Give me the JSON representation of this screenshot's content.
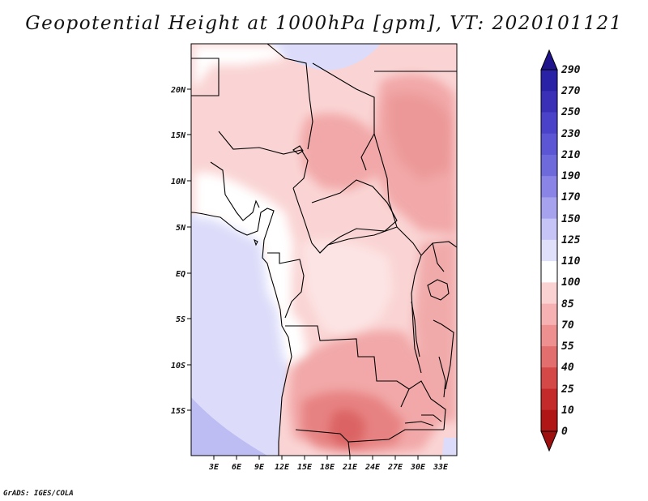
{
  "map": {
    "title": "Geopotential Height at 1000hPa [gpm], VT: 2020101121",
    "variable": "Geopotential Height",
    "level": "1000hPa",
    "units": "gpm",
    "valid_time": "2020101121",
    "lat_ticks": [
      "20N",
      "15N",
      "10N",
      "5N",
      "EQ",
      "5S",
      "10S",
      "15S"
    ],
    "lon_ticks": [
      "3E",
      "6E",
      "9E",
      "12E",
      "15E",
      "18E",
      "21E",
      "24E",
      "27E",
      "30E",
      "33E"
    ],
    "credit": "GrADS: IGES/COLA"
  },
  "colorbar": {
    "labels": [
      "290",
      "270",
      "250",
      "230",
      "210",
      "190",
      "170",
      "150",
      "125",
      "110",
      "100",
      "85",
      "70",
      "55",
      "40",
      "25",
      "10",
      "0"
    ],
    "colors": [
      "#20148c",
      "#2a22a6",
      "#3a30b8",
      "#4a42c8",
      "#5c56d4",
      "#6e6adc",
      "#8a84e6",
      "#a6a2ee",
      "#c6c4f6",
      "#e0e0fa",
      "#ffffff",
      "#fbd2d2",
      "#f6b2b2",
      "#ee9090",
      "#e26e6e",
      "#d44848",
      "#c42a2a",
      "#b01616",
      "#9e1010"
    ]
  }
}
